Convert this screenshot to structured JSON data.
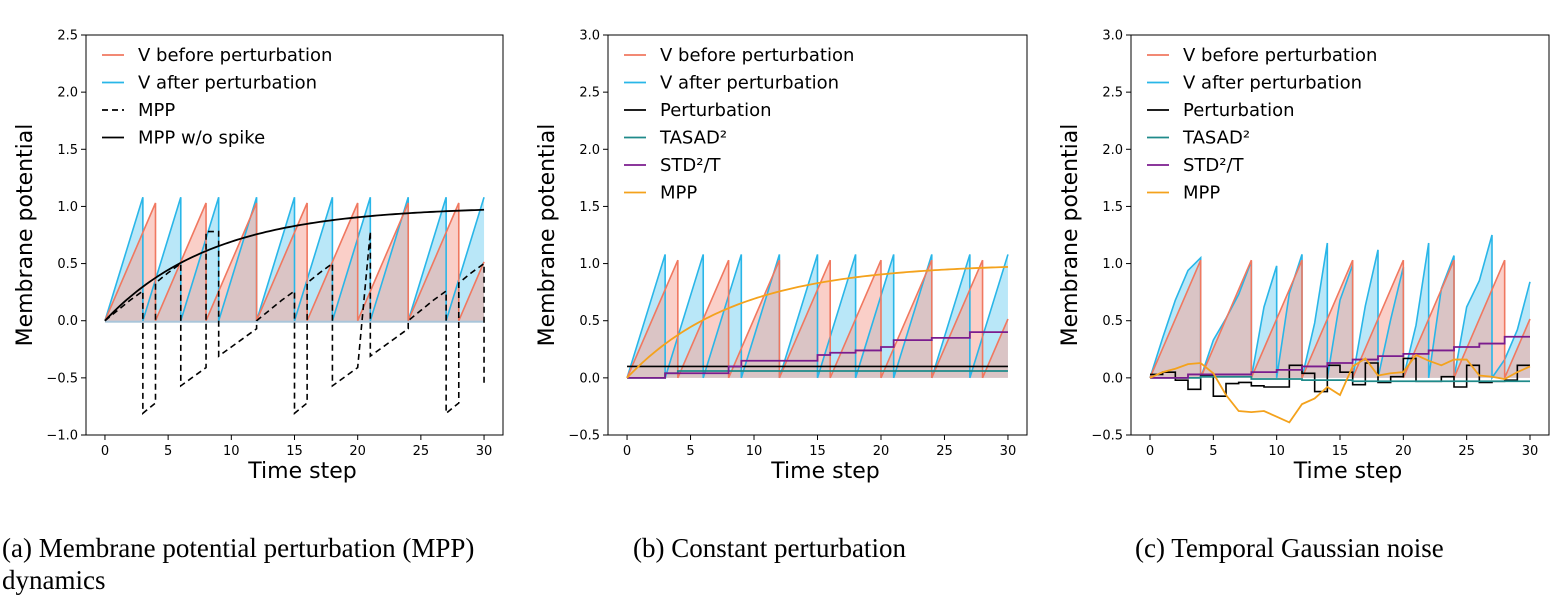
{
  "colors": {
    "v_before": "#f07860",
    "v_after": "#29b6e8",
    "fill_before": "#f5a89a",
    "fill_after": "#7fd3f2",
    "overlap": "#6f9ec1",
    "perturbation": "#000000",
    "tasad": "#1f8a8a",
    "std": "#7b1c8e",
    "mpp": "#f4a21c"
  },
  "chart_data": [
    {
      "type": "line",
      "id": "a",
      "xlabel": "Time step",
      "ylabel": "Membrane potential",
      "xlim": [
        -1.5,
        31.5
      ],
      "ylim": [
        -1.0,
        2.5
      ],
      "xticks": [
        "0",
        "5",
        "10",
        "15",
        "20",
        "25",
        "30"
      ],
      "yticks": [
        "−1.0",
        "−0.5",
        "0.0",
        "0.5",
        "1.0",
        "1.5",
        "2.0",
        "2.5"
      ],
      "legend": [
        "V before perturbation",
        "V after perturbation",
        "MPP",
        "MPP w/o spike"
      ],
      "series": {
        "v_before_spikes": [
          4,
          8,
          12,
          16,
          20,
          24,
          28
        ],
        "v_after_spikes": [
          3,
          6,
          9,
          12,
          15,
          18,
          21,
          24,
          27,
          30
        ],
        "mpp_x": [
          0,
          1,
          2,
          3,
          3,
          4,
          4,
          5,
          6,
          6,
          7,
          8,
          8,
          9,
          9,
          10,
          11,
          12,
          12,
          13,
          14,
          15,
          15,
          16,
          16,
          17,
          18,
          18,
          19,
          20,
          21,
          21,
          22,
          23,
          24,
          24,
          25,
          26,
          27,
          27,
          28,
          28,
          29,
          30,
          30
        ],
        "mpp_y": [
          0,
          0.09,
          0.18,
          0.26,
          -0.81,
          -0.72,
          0.33,
          0.42,
          0.5,
          -0.57,
          -0.49,
          -0.41,
          0.78,
          0.78,
          -0.31,
          -0.23,
          -0.15,
          -0.07,
          0,
          0.09,
          0.18,
          0.26,
          -0.81,
          -0.72,
          0.33,
          0.42,
          0.5,
          -0.57,
          -0.49,
          -0.41,
          0.78,
          -0.31,
          -0.23,
          -0.15,
          -0.07,
          0,
          0.09,
          0.18,
          0.26,
          -0.81,
          -0.72,
          0.33,
          0.42,
          0.5,
          -0.57
        ],
        "mpp_no_spike_tau": 8.5,
        "mpp_no_spike_limit": 1.0
      }
    },
    {
      "type": "line",
      "id": "b",
      "xlabel": "Time step",
      "ylabel": "Membrane potential",
      "xlim": [
        -1.5,
        31.5
      ],
      "ylim": [
        -0.5,
        3.0
      ],
      "xticks": [
        "0",
        "5",
        "10",
        "15",
        "20",
        "25",
        "30"
      ],
      "yticks": [
        "−0.5",
        "0.0",
        "0.5",
        "1.0",
        "1.5",
        "2.0",
        "2.5",
        "3.0"
      ],
      "legend": [
        "V before perturbation",
        "V after perturbation",
        "Perturbation",
        "TASAD²",
        "STD²/T",
        "MPP"
      ],
      "series": {
        "v_before_spikes": [
          4,
          8,
          12,
          16,
          20,
          24,
          28
        ],
        "v_after_spikes": [
          3,
          6,
          9,
          12,
          15,
          18,
          21,
          24,
          27,
          30
        ],
        "perturbation_value": 0.1,
        "tasad_x": [
          0,
          3,
          3,
          4,
          4,
          8,
          8,
          30
        ],
        "tasad_y": [
          0,
          0,
          0.04,
          0.04,
          0.06,
          0.06,
          0.06,
          0.06
        ],
        "std_x": [
          0,
          3,
          3,
          8,
          8,
          9,
          9,
          15,
          15,
          16,
          16,
          18,
          18,
          20,
          20,
          21,
          21,
          24,
          24,
          27,
          27,
          30
        ],
        "std_y": [
          0,
          0,
          0.04,
          0.04,
          0.1,
          0.1,
          0.15,
          0.15,
          0.2,
          0.2,
          0.22,
          0.22,
          0.24,
          0.24,
          0.27,
          0.27,
          0.33,
          0.33,
          0.35,
          0.35,
          0.4,
          0.4
        ],
        "mpp_tau": 8.5,
        "mpp_limit": 1.0
      }
    },
    {
      "type": "line",
      "id": "c",
      "xlabel": "Time step",
      "ylabel": "Membrane potential",
      "xlim": [
        -1.5,
        31.5
      ],
      "ylim": [
        -0.5,
        3.0
      ],
      "xticks": [
        "0",
        "5",
        "10",
        "15",
        "20",
        "25",
        "30"
      ],
      "yticks": [
        "−0.5",
        "0.0",
        "0.5",
        "1.0",
        "1.5",
        "2.0",
        "2.5",
        "3.0"
      ],
      "legend": [
        "V before perturbation",
        "V after perturbation",
        "Perturbation",
        "TASAD²",
        "STD²/T",
        "MPP"
      ],
      "series": {
        "v_before_spikes": [
          4,
          8,
          12,
          16,
          20,
          24,
          28
        ],
        "v_after_x": [
          0,
          1,
          2,
          3,
          4,
          4,
          5,
          6,
          7,
          8,
          8,
          9,
          10,
          10,
          11,
          12,
          12,
          13,
          14,
          14,
          15,
          16,
          16,
          17,
          18,
          18,
          19,
          20,
          20,
          21,
          22,
          22,
          23,
          24,
          24,
          25,
          26,
          27,
          27,
          28,
          29,
          30
        ],
        "v_after_y": [
          0,
          0.35,
          0.68,
          0.94,
          1.05,
          0,
          0.33,
          0.52,
          0.73,
          1.02,
          0,
          0.62,
          0.98,
          0,
          0.74,
          1.08,
          0,
          0.48,
          1.18,
          0,
          0.68,
          0.99,
          0,
          0.63,
          1.12,
          0,
          0.51,
          0.97,
          0,
          0.46,
          1.18,
          0,
          0.78,
          1.07,
          0,
          0.62,
          0.85,
          1.25,
          0,
          0.16,
          0.42,
          0.84
        ],
        "perturbation": [
          0.03,
          0.05,
          -0.02,
          -0.1,
          0.02,
          -0.16,
          -0.05,
          -0.04,
          -0.07,
          -0.08,
          -0.08,
          0.11,
          0.04,
          -0.12,
          0.11,
          0.05,
          -0.06,
          0.13,
          -0.04,
          0.01,
          0.17,
          -0.03,
          -0.03,
          0.01,
          -0.08,
          0.11,
          -0.04,
          -0.03,
          -0.02,
          0.11
        ],
        "tasad_x": [
          0,
          4,
          4,
          8,
          8,
          12,
          12,
          16,
          16,
          28,
          28,
          30
        ],
        "tasad_y": [
          0,
          0,
          0.01,
          0.01,
          -0.01,
          -0.01,
          -0.02,
          -0.02,
          -0.03,
          -0.03,
          -0.03,
          -0.03
        ],
        "std_x": [
          0,
          3,
          3,
          8,
          8,
          10,
          10,
          12,
          12,
          14,
          14,
          16,
          16,
          18,
          18,
          20,
          20,
          22,
          22,
          24,
          24,
          26,
          26,
          28,
          28,
          30
        ],
        "std_y": [
          0,
          0,
          0.03,
          0.03,
          0.05,
          0.05,
          0.07,
          0.07,
          0.1,
          0.1,
          0.13,
          0.13,
          0.16,
          0.16,
          0.19,
          0.19,
          0.21,
          0.21,
          0.24,
          0.24,
          0.27,
          0.27,
          0.3,
          0.3,
          0.36,
          0.36
        ],
        "mpp": [
          0,
          0.05,
          0.08,
          0.12,
          0.13,
          0.04,
          -0.15,
          -0.29,
          -0.3,
          -0.29,
          -0.34,
          -0.39,
          -0.23,
          -0.18,
          -0.08,
          -0.15,
          0.1,
          0.17,
          0.02,
          0.04,
          0.05,
          0.2,
          0.15,
          0.11,
          0.16,
          0.16,
          0.02,
          0.01,
          -0.01,
          0.05,
          0.1
        ]
      }
    }
  ],
  "captions": {
    "a_line1": "(a)  Membrane potential perturbation (MPP)",
    "a_line2": "dynamics",
    "b": "(b)  Constant perturbation",
    "c": "(c)  Temporal Gaussian noise"
  }
}
